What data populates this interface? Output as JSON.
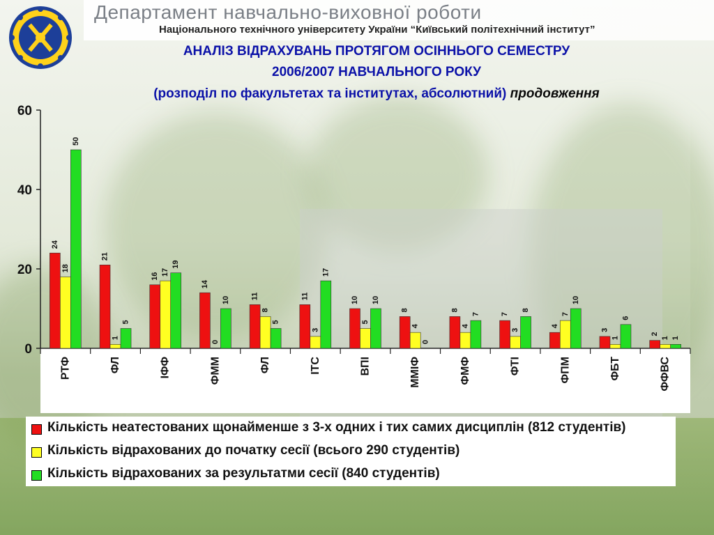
{
  "header": {
    "department_title": "Департамент навчально-виховної роботи",
    "subtitle": "Національного технічного університету України “Київський політехнічний інститут”"
  },
  "slide": {
    "title_line1": "АНАЛІЗ ВІДРАХУВАНЬ ПРОТЯГОМ ОСІННЬОГО СЕМЕСТРУ",
    "title_line2": "2006/2007 НАВЧАЛЬНОГО РОКУ",
    "title_line3": "(розподіл по факультетах та інститутах, абсолютний)",
    "title_line3_continued": "продовження"
  },
  "colors": {
    "series_red": "#ee1111",
    "series_yellow": "#ffff22",
    "series_green": "#22dd22",
    "title_blue": "#0b11a8"
  },
  "chart_data": {
    "type": "bar",
    "categories": [
      "РТФ",
      "ФЛ",
      "ІФФ",
      "ФММ",
      "ФЛ",
      "ІТС",
      "ВПІ",
      "ММІФ",
      "ФМФ",
      "ФТІ",
      "ФПМ",
      "ФБТ",
      "ФФВС"
    ],
    "series": [
      {
        "name": "Кількість неатестованих щонайменше з 3-х одних і тих самих дисциплін (812 студентів)",
        "color": "#ee1111",
        "values": [
          24,
          21,
          16,
          14,
          11,
          11,
          10,
          8,
          8,
          7,
          4,
          3,
          2
        ]
      },
      {
        "name": "Кількість відрахованих до початку сесії (всього 290 студентів)",
        "color": "#ffff22",
        "values": [
          18,
          1,
          17,
          0,
          8,
          3,
          5,
          4,
          4,
          3,
          7,
          1,
          1
        ]
      },
      {
        "name": "Кількість відрахованих за результатми сесії (840 студентів)",
        "color": "#22dd22",
        "values": [
          50,
          5,
          19,
          10,
          5,
          17,
          10,
          0,
          7,
          8,
          10,
          6,
          1
        ]
      }
    ],
    "ylim": [
      0,
      60
    ],
    "yticks": [
      0,
      20,
      40,
      60
    ],
    "grid": false,
    "legend_position": "bottom"
  }
}
